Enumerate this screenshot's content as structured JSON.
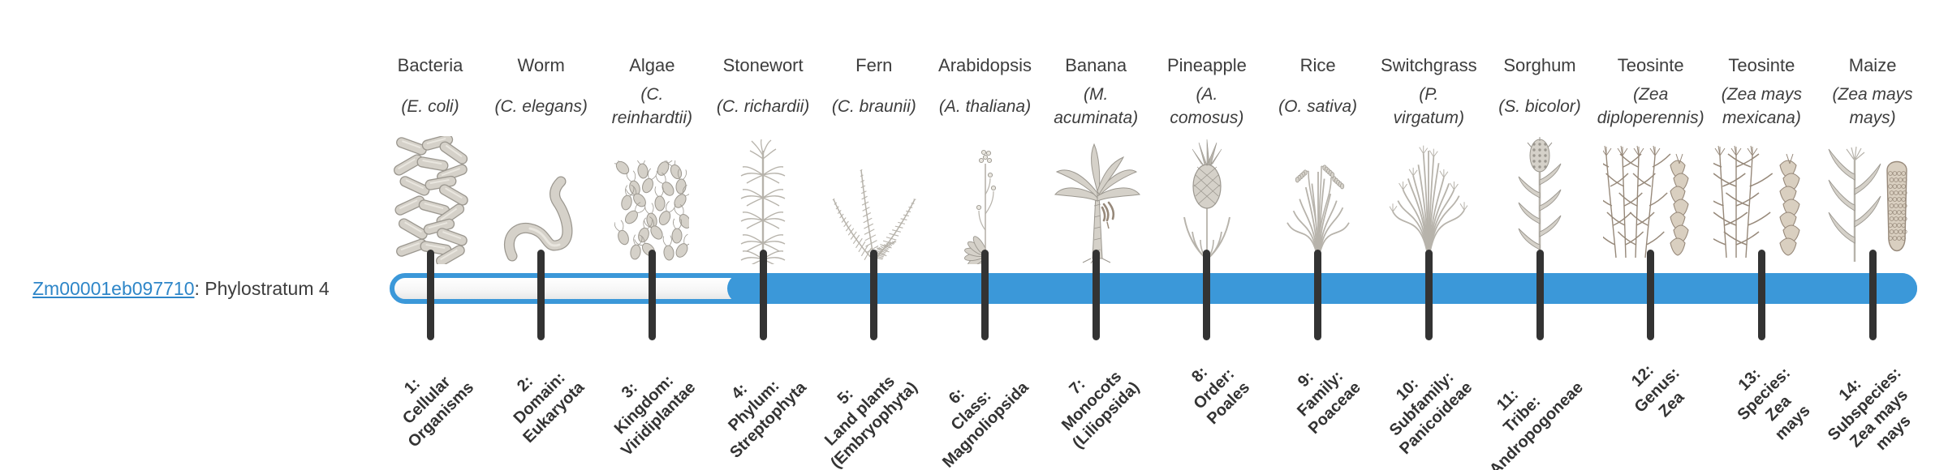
{
  "gene": {
    "id": "Zm00001eb097710",
    "suffix": ": Phylostratum 4"
  },
  "phylostratum_highlighted": 4,
  "colors": {
    "bar_blue": "#3b98d9",
    "track_background": "#ffffff",
    "tick": "#333333",
    "link_blue": "#2e86c8",
    "text": "#3d3d3d",
    "illustration_gray": "#9b978f",
    "illustration_sepia": "#97897a"
  },
  "taxa": [
    {
      "n": 1,
      "common": "Bacteria",
      "species_lines": [
        "(E. coli)"
      ],
      "stratum_lines": [
        "1:",
        "Cellular",
        "Organisms"
      ],
      "icon": "bacteria",
      "in_filled_region": false
    },
    {
      "n": 2,
      "common": "Worm",
      "species_lines": [
        "(C. elegans)"
      ],
      "stratum_lines": [
        "2:",
        "Domain:",
        "Eukaryota"
      ],
      "icon": "worm",
      "in_filled_region": false
    },
    {
      "n": 3,
      "common": "Algae",
      "species_lines": [
        "(C.",
        "reinhardtii)"
      ],
      "stratum_lines": [
        "3:",
        "Kingdom:",
        "Viridiplantae"
      ],
      "icon": "algae",
      "in_filled_region": false
    },
    {
      "n": 4,
      "common": "Stonewort",
      "species_lines": [
        "(C. richardii)"
      ],
      "stratum_lines": [
        "4:",
        "Phylum:",
        "Streptophyta"
      ],
      "icon": "stonewort",
      "in_filled_region": true
    },
    {
      "n": 5,
      "common": "Fern",
      "species_lines": [
        "(C. braunii)"
      ],
      "stratum_lines": [
        "5:",
        "Land plants",
        "(Embryophyta)"
      ],
      "icon": "fern",
      "in_filled_region": true
    },
    {
      "n": 6,
      "common": "Arabidopsis",
      "species_lines": [
        "(A. thaliana)"
      ],
      "stratum_lines": [
        "6:",
        "Class:",
        "Magnoliopsida"
      ],
      "icon": "arabidopsis",
      "in_filled_region": true
    },
    {
      "n": 7,
      "common": "Banana",
      "species_lines": [
        "(M.",
        "acuminata)"
      ],
      "stratum_lines": [
        "7:",
        "Monocots",
        "(Liliopsida)"
      ],
      "icon": "banana",
      "in_filled_region": true
    },
    {
      "n": 8,
      "common": "Pineapple",
      "species_lines": [
        "(A.",
        "comosus)"
      ],
      "stratum_lines": [
        "8:",
        "Order:",
        "Poales"
      ],
      "icon": "pineapple",
      "in_filled_region": true
    },
    {
      "n": 9,
      "common": "Rice",
      "species_lines": [
        "(O. sativa)"
      ],
      "stratum_lines": [
        "9:",
        "Family:",
        "Poaceae"
      ],
      "icon": "rice",
      "in_filled_region": true
    },
    {
      "n": 10,
      "common": "Switchgrass",
      "species_lines": [
        "(P.",
        "virgatum)"
      ],
      "stratum_lines": [
        "10:",
        "Subfamily:",
        "Panicoideae"
      ],
      "icon": "switchgrass",
      "in_filled_region": true
    },
    {
      "n": 11,
      "common": "Sorghum",
      "species_lines": [
        "(S. bicolor)"
      ],
      "stratum_lines": [
        "11:",
        "Tribe:",
        "Andropogoneae"
      ],
      "icon": "sorghum",
      "in_filled_region": true
    },
    {
      "n": 12,
      "common": "Teosinte",
      "species_lines": [
        "(Zea",
        "diploperennis)"
      ],
      "stratum_lines": [
        "12:",
        "Genus:",
        "Zea"
      ],
      "icon": "teosinte-diploperennis",
      "in_filled_region": true
    },
    {
      "n": 13,
      "common": "Teosinte",
      "species_lines": [
        "(Zea mays",
        "mexicana)"
      ],
      "stratum_lines": [
        "13:",
        "Species:",
        "Zea",
        "mays"
      ],
      "icon": "teosinte-mexicana",
      "in_filled_region": true
    },
    {
      "n": 14,
      "common": "Maize",
      "species_lines": [
        "(Zea mays",
        "mays)"
      ],
      "stratum_lines": [
        "14:",
        "Subspecies:",
        "Zea mays",
        "mays"
      ],
      "icon": "maize",
      "in_filled_region": true
    }
  ]
}
